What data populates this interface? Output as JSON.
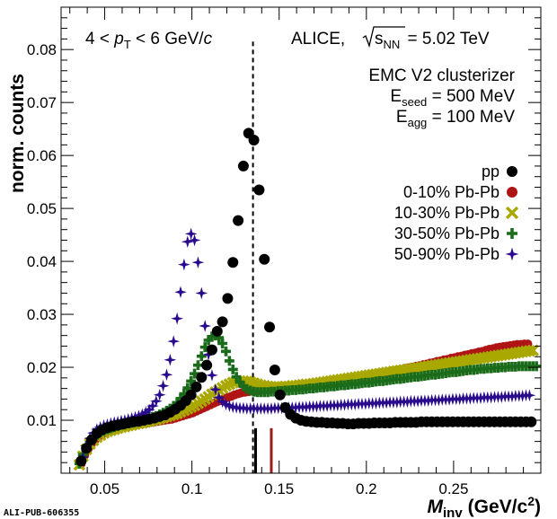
{
  "chart_data": {
    "type": "scatter",
    "xlabel": {
      "main": "M",
      "sub": "inv",
      "unit": "(GeV/c",
      "sup": "2",
      "close": ")"
    },
    "ylabel": "norm. counts",
    "xlim": [
      0.025,
      0.3
    ],
    "ylim": [
      0.0,
      0.088
    ],
    "xticks": [
      0.05,
      0.1,
      0.15,
      0.2,
      0.25
    ],
    "xtick_labels": [
      "0.05",
      "0.1",
      "0.15",
      "0.2",
      "0.25"
    ],
    "yticks": [
      0.01,
      0.02,
      0.03,
      0.04,
      0.05,
      0.06,
      0.07,
      0.08
    ],
    "ytick_labels": [
      "0.01",
      "0.02",
      "0.03",
      "0.04",
      "0.05",
      "0.06",
      "0.07",
      "0.08"
    ],
    "pt_label": {
      "pre": "4 < ",
      "p": "p",
      "sub": "T",
      "post": " < 6 GeV/",
      "c": "c"
    },
    "alice_label": {
      "pre": "ALICE, ",
      "s": "s",
      "sub": "NN",
      "post": " = 5.02 TeV"
    },
    "clusterizer": "EMC V2 clusterizer",
    "eseed": {
      "E": "E",
      "sub": "seed",
      "post": " = 500 MeV"
    },
    "eagg": {
      "E": "E",
      "sub": "agg",
      "post": " = 100 MeV"
    },
    "vertical_lines": [
      {
        "x": 0.135,
        "style": "dashed",
        "color": "#000000"
      },
      {
        "x": 0.1455,
        "style": "solid",
        "color": "#9b1c1c",
        "y_top": 0.0085
      }
    ],
    "short_black_marker": {
      "x": 0.1365,
      "y_top": 0.0085
    },
    "series": [
      {
        "name": "pp",
        "marker": "circle",
        "color": "#000000",
        "points": [
          [
            0.0365,
            0.0023
          ],
          [
            0.0395,
            0.0047
          ],
          [
            0.0425,
            0.0063
          ],
          [
            0.0455,
            0.0075
          ],
          [
            0.0485,
            0.0082
          ],
          [
            0.0515,
            0.0086
          ],
          [
            0.0545,
            0.0089
          ],
          [
            0.0575,
            0.0091
          ],
          [
            0.0605,
            0.0093
          ],
          [
            0.0635,
            0.0095
          ],
          [
            0.0665,
            0.0097
          ],
          [
            0.0695,
            0.0098
          ],
          [
            0.0725,
            0.01
          ],
          [
            0.0755,
            0.0102
          ],
          [
            0.0785,
            0.0104
          ],
          [
            0.0815,
            0.0107
          ],
          [
            0.0845,
            0.011
          ],
          [
            0.0875,
            0.0115
          ],
          [
            0.0905,
            0.0121
          ],
          [
            0.0935,
            0.0128
          ],
          [
            0.0965,
            0.0137
          ],
          [
            0.0995,
            0.0148
          ],
          [
            0.1025,
            0.0163
          ],
          [
            0.1055,
            0.0181
          ],
          [
            0.1085,
            0.0204
          ],
          [
            0.1115,
            0.0233
          ],
          [
            0.1145,
            0.0268
          ],
          [
            0.1175,
            0.0286
          ],
          [
            0.1205,
            0.033
          ],
          [
            0.1235,
            0.0398
          ],
          [
            0.1265,
            0.0477
          ],
          [
            0.1295,
            0.058
          ],
          [
            0.1325,
            0.0642
          ],
          [
            0.1355,
            0.0629
          ],
          [
            0.1385,
            0.0535
          ],
          [
            0.1415,
            0.0404
          ],
          [
            0.1445,
            0.0276
          ],
          [
            0.1475,
            0.0195
          ],
          [
            0.1505,
            0.0148
          ],
          [
            0.1535,
            0.0124
          ],
          [
            0.1565,
            0.0111
          ],
          [
            0.1595,
            0.0104
          ],
          [
            0.1625,
            0.01
          ],
          [
            0.1655,
            0.0098
          ],
          [
            0.1685,
            0.0097
          ],
          [
            0.1715,
            0.0096
          ],
          [
            0.1745,
            0.0096
          ],
          [
            0.1775,
            0.0095
          ],
          [
            0.1805,
            0.0095
          ],
          [
            0.1835,
            0.0094
          ],
          [
            0.1865,
            0.0094
          ],
          [
            0.1895,
            0.0093
          ],
          [
            0.1925,
            0.0093
          ],
          [
            0.1955,
            0.0094
          ],
          [
            0.1985,
            0.0094
          ],
          [
            0.2015,
            0.0094
          ],
          [
            0.2045,
            0.0095
          ],
          [
            0.2075,
            0.0095
          ],
          [
            0.2105,
            0.0095
          ],
          [
            0.2135,
            0.0095
          ],
          [
            0.2165,
            0.0096
          ],
          [
            0.2195,
            0.0096
          ],
          [
            0.2225,
            0.0096
          ],
          [
            0.2255,
            0.0096
          ],
          [
            0.2285,
            0.0096
          ],
          [
            0.2315,
            0.0097
          ],
          [
            0.2345,
            0.0097
          ],
          [
            0.2375,
            0.0097
          ],
          [
            0.2405,
            0.0097
          ],
          [
            0.2435,
            0.0097
          ],
          [
            0.2465,
            0.0097
          ],
          [
            0.2495,
            0.0097
          ],
          [
            0.2525,
            0.0097
          ],
          [
            0.2555,
            0.0097
          ],
          [
            0.2585,
            0.0097
          ],
          [
            0.2615,
            0.0097
          ],
          [
            0.2645,
            0.0097
          ],
          [
            0.2675,
            0.0097
          ],
          [
            0.2705,
            0.0097
          ],
          [
            0.2735,
            0.0097
          ],
          [
            0.2765,
            0.0097
          ],
          [
            0.2795,
            0.0097
          ],
          [
            0.2825,
            0.0097
          ],
          [
            0.2855,
            0.0097
          ],
          [
            0.2885,
            0.0097
          ],
          [
            0.2915,
            0.0097
          ],
          [
            0.2945,
            0.0097
          ]
        ]
      },
      {
        "name": "0-10% Pb-Pb",
        "marker": "circle",
        "color": "#b01515",
        "x_start": 0.0365,
        "x_step": 0.002,
        "values": [
          0.0018,
          0.0034,
          0.0046,
          0.0056,
          0.0063,
          0.0069,
          0.0073,
          0.0077,
          0.008,
          0.0082,
          0.0084,
          0.0086,
          0.0088,
          0.0089,
          0.009,
          0.0091,
          0.0092,
          0.0093,
          0.0094,
          0.0095,
          0.0096,
          0.0097,
          0.0098,
          0.0099,
          0.01,
          0.0101,
          0.0102,
          0.0104,
          0.0106,
          0.0108,
          0.011,
          0.0112,
          0.0114,
          0.0117,
          0.012,
          0.0123,
          0.0126,
          0.0129,
          0.0132,
          0.0135,
          0.0138,
          0.0141,
          0.0143,
          0.0145,
          0.0148,
          0.015,
          0.0152,
          0.0153,
          0.0154,
          0.0155,
          0.0155,
          0.0156,
          0.0157,
          0.0158,
          0.0158,
          0.0159,
          0.016,
          0.0161,
          0.0161,
          0.0162,
          0.0163,
          0.0164,
          0.0164,
          0.0165,
          0.0166,
          0.0167,
          0.0168,
          0.0169,
          0.017,
          0.0171,
          0.0172,
          0.0173,
          0.0174,
          0.0175,
          0.0176,
          0.0177,
          0.0178,
          0.0179,
          0.018,
          0.0181,
          0.0182,
          0.0183,
          0.0184,
          0.0185,
          0.0187,
          0.0188,
          0.0189,
          0.019,
          0.0191,
          0.0193,
          0.0194,
          0.0195,
          0.0196,
          0.0198,
          0.0199,
          0.02,
          0.0202,
          0.0203,
          0.0205,
          0.0206,
          0.0208,
          0.0209,
          0.0211,
          0.0212,
          0.0214,
          0.0215,
          0.0217,
          0.0218,
          0.022,
          0.0221,
          0.0223,
          0.0224,
          0.0226,
          0.0227,
          0.0229,
          0.023,
          0.0232,
          0.0234,
          0.0235,
          0.0237,
          0.0238,
          0.0239,
          0.024,
          0.0241,
          0.0242,
          0.0243,
          0.0243,
          0.0244,
          0.0244
        ]
      },
      {
        "name": "10-30% Pb-Pb",
        "marker": "x",
        "color": "#a8a800",
        "x_start": 0.0355,
        "x_step": 0.002,
        "values": [
          0.0016,
          0.0032,
          0.0045,
          0.0055,
          0.0062,
          0.0068,
          0.0072,
          0.0076,
          0.0079,
          0.0081,
          0.0083,
          0.0085,
          0.0087,
          0.0088,
          0.009,
          0.0091,
          0.0093,
          0.0094,
          0.0095,
          0.0097,
          0.0098,
          0.01,
          0.0101,
          0.0103,
          0.0105,
          0.0107,
          0.0109,
          0.0111,
          0.0113,
          0.0116,
          0.0119,
          0.0122,
          0.0125,
          0.0128,
          0.0132,
          0.0136,
          0.014,
          0.0144,
          0.0149,
          0.0153,
          0.0157,
          0.0161,
          0.0165,
          0.0168,
          0.0171,
          0.0173,
          0.0174,
          0.0174,
          0.0173,
          0.0172,
          0.017,
          0.0168,
          0.0166,
          0.0165,
          0.0164,
          0.0163,
          0.0163,
          0.0163,
          0.0163,
          0.0164,
          0.0164,
          0.0165,
          0.0165,
          0.0166,
          0.0167,
          0.0168,
          0.0168,
          0.0169,
          0.017,
          0.0171,
          0.0172,
          0.0173,
          0.0174,
          0.0175,
          0.0176,
          0.0177,
          0.0178,
          0.0179,
          0.018,
          0.0181,
          0.0182,
          0.0183,
          0.0184,
          0.0185,
          0.0186,
          0.0187,
          0.0188,
          0.0189,
          0.019,
          0.0191,
          0.0192,
          0.0193,
          0.0194,
          0.0195,
          0.0196,
          0.0197,
          0.0198,
          0.0199,
          0.02,
          0.0201,
          0.0202,
          0.0203,
          0.0204,
          0.0205,
          0.0206,
          0.0207,
          0.0208,
          0.0209,
          0.021,
          0.0211,
          0.0212,
          0.0213,
          0.0214,
          0.0215,
          0.0216,
          0.0217,
          0.0218,
          0.0219,
          0.022,
          0.0221,
          0.0222,
          0.0223,
          0.0224,
          0.0225,
          0.0226,
          0.0227,
          0.0228,
          0.0229,
          0.023,
          0.0231,
          0.0232
        ]
      },
      {
        "name": "30-50% Pb-Pb",
        "marker": "plus",
        "color": "#1a6b1a",
        "x_start": 0.0355,
        "x_step": 0.002,
        "values": [
          0.0018,
          0.0035,
          0.0048,
          0.0058,
          0.0066,
          0.0072,
          0.0077,
          0.008,
          0.0083,
          0.0085,
          0.0087,
          0.0089,
          0.0091,
          0.0092,
          0.0094,
          0.0095,
          0.0097,
          0.0098,
          0.01,
          0.0102,
          0.0104,
          0.0106,
          0.0108,
          0.0111,
          0.0114,
          0.0118,
          0.0122,
          0.0127,
          0.0133,
          0.0141,
          0.015,
          0.0161,
          0.0174,
          0.0188,
          0.0204,
          0.0221,
          0.0238,
          0.0251,
          0.0258,
          0.026,
          0.0256,
          0.0245,
          0.023,
          0.0212,
          0.0196,
          0.0182,
          0.0172,
          0.0164,
          0.0159,
          0.0156,
          0.0154,
          0.0153,
          0.0153,
          0.0153,
          0.0153,
          0.0154,
          0.0154,
          0.0155,
          0.0155,
          0.0156,
          0.0156,
          0.0157,
          0.0157,
          0.0158,
          0.0158,
          0.0159,
          0.016,
          0.016,
          0.0161,
          0.0162,
          0.0162,
          0.0163,
          0.0164,
          0.0164,
          0.0165,
          0.0166,
          0.0166,
          0.0167,
          0.0168,
          0.0168,
          0.0169,
          0.017,
          0.0171,
          0.0171,
          0.0172,
          0.0173,
          0.0174,
          0.0174,
          0.0175,
          0.0176,
          0.0177,
          0.0178,
          0.0178,
          0.0179,
          0.018,
          0.0181,
          0.0182,
          0.0182,
          0.0183,
          0.0184,
          0.0185,
          0.0186,
          0.0186,
          0.0187,
          0.0188,
          0.0189,
          0.019,
          0.0191,
          0.0191,
          0.0192,
          0.0193,
          0.0194,
          0.0195,
          0.0195,
          0.0196,
          0.0197,
          0.0197,
          0.0198,
          0.0198,
          0.0199,
          0.0199,
          0.02,
          0.02,
          0.0201,
          0.0201,
          0.0201,
          0.0202,
          0.0202,
          0.0202,
          0.0202,
          0.0202,
          0.0202
        ]
      },
      {
        "name": "50-90% Pb-Pb",
        "marker": "star",
        "color": "#2a0a8c",
        "x_start": 0.0375,
        "x_step": 0.002,
        "values": [
          0.003,
          0.0052,
          0.0066,
          0.0076,
          0.0083,
          0.0087,
          0.009,
          0.0092,
          0.0094,
          0.0096,
          0.0097,
          0.0099,
          0.01,
          0.0102,
          0.0104,
          0.0106,
          0.0108,
          0.0111,
          0.0115,
          0.012,
          0.0127,
          0.0136,
          0.0148,
          0.0165,
          0.0186,
          0.0214,
          0.0249,
          0.0292,
          0.0342,
          0.0394,
          0.0437,
          0.0452,
          0.044,
          0.0398,
          0.034,
          0.0278,
          0.0224,
          0.0185,
          0.0158,
          0.0143,
          0.0135,
          0.013,
          0.0127,
          0.0125,
          0.0124,
          0.0123,
          0.0123,
          0.0122,
          0.0122,
          0.0122,
          0.0122,
          0.0122,
          0.0122,
          0.0122,
          0.0122,
          0.0123,
          0.0123,
          0.0123,
          0.0123,
          0.0124,
          0.0124,
          0.0124,
          0.0125,
          0.0125,
          0.0125,
          0.0126,
          0.0126,
          0.0126,
          0.0127,
          0.0127,
          0.0127,
          0.0128,
          0.0128,
          0.0128,
          0.0129,
          0.0129,
          0.013,
          0.013,
          0.013,
          0.0131,
          0.0131,
          0.0131,
          0.0132,
          0.0132,
          0.0132,
          0.0133,
          0.0133,
          0.0133,
          0.0134,
          0.0134,
          0.0134,
          0.0135,
          0.0135,
          0.0135,
          0.0136,
          0.0136,
          0.0136,
          0.0137,
          0.0137,
          0.0137,
          0.0138,
          0.0138,
          0.0138,
          0.0139,
          0.0139,
          0.0139,
          0.014,
          0.014,
          0.014,
          0.0141,
          0.0141,
          0.0141,
          0.0142,
          0.0142,
          0.0142,
          0.0143,
          0.0143,
          0.0143,
          0.0144,
          0.0144,
          0.0144,
          0.0145,
          0.0145,
          0.0145,
          0.0146,
          0.0146,
          0.0146,
          0.0147,
          0.0147
        ]
      }
    ],
    "legend_position": "right, below annotation"
  },
  "footer": {
    "pub_id": "ALI-PUB-606355"
  }
}
